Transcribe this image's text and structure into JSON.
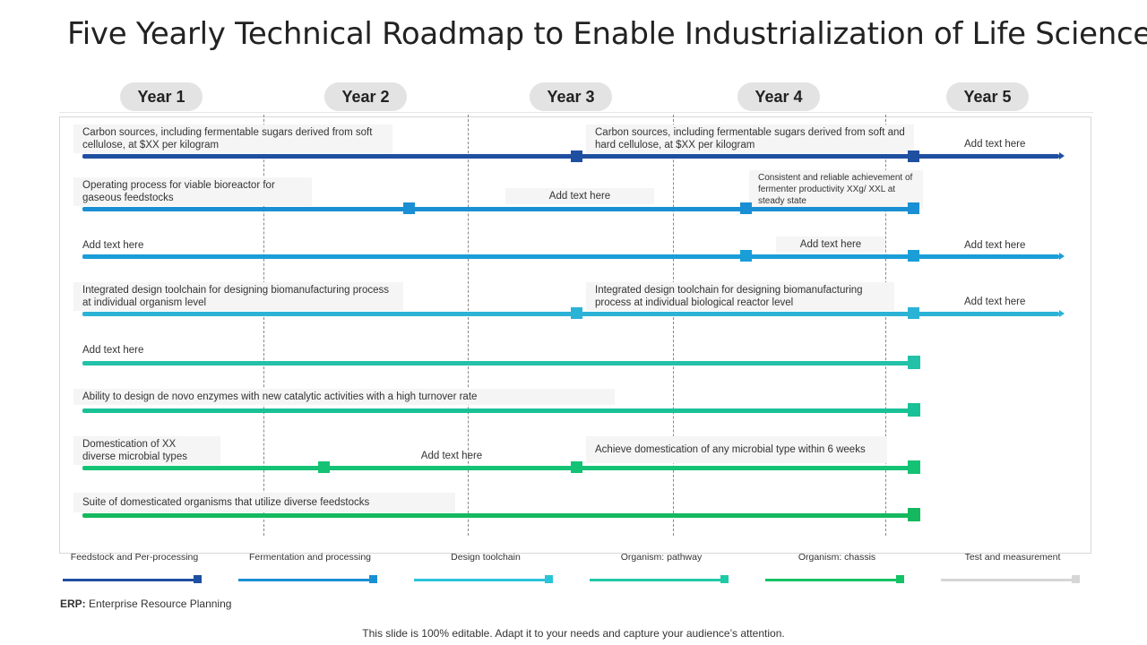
{
  "title": "Five Yearly Technical Roadmap to Enable Industrialization of Life Science",
  "years": [
    "Year 1",
    "Year 2",
    "Year 3",
    "Year 4",
    "Year 5"
  ],
  "colors": {
    "lane1": "#1f4fa0",
    "lane2": "#1a8fd3",
    "lane3": "#2bb3d6",
    "lane4": "#23c1b8",
    "lane5": "#14c58e",
    "lane6": "#1ab86a",
    "legend_grey": "#d6d6d6"
  },
  "lanes": [
    {
      "labels": [
        "Carbon sources, including fermentable sugars derived from soft cellulose, at $XX  per kilogram",
        "Carbon sources, including fermentable sugars derived from soft and hard cellulose, at $XX  per kilogram",
        "Add text here"
      ]
    },
    {
      "labels": [
        "Operating process for viable bioreactor for gaseous feedstocks",
        "Add text here",
        "Consistent and reliable achievement of fermenter productivity XXg/ XXL at steady state"
      ]
    },
    {
      "labels": [
        "Add text here",
        "Add text here",
        "Add text here"
      ]
    },
    {
      "labels": [
        "Integrated design toolchain for designing biomanufacturing process at individual organism level",
        "Integrated design toolchain for designing biomanufacturing process at individual biological reactor level",
        "Add text here"
      ]
    },
    {
      "labels": [
        "Add text here"
      ]
    },
    {
      "labels": [
        "Ability to design de novo enzymes with new catalytic activities with a high turnover rate"
      ]
    },
    {
      "labels": [
        "Domestication of XX diverse microbial types",
        "Add text here",
        "Achieve domestication of any microbial type within 6 weeks"
      ]
    },
    {
      "labels": [
        "Suite of domesticated organisms that utilize diverse feedstocks"
      ]
    }
  ],
  "legend": [
    {
      "label": "Feedstock and Per-processing"
    },
    {
      "label": "Fermentation and processing"
    },
    {
      "label": "Design toolchain"
    },
    {
      "label": "Organism: pathway"
    },
    {
      "label": "Organism: chassis"
    },
    {
      "label": "Test and measurement"
    }
  ],
  "erp": {
    "abbr": "ERP:",
    "text": "Enterprise Resource Planning"
  },
  "footer": "This slide is 100% editable. Adapt it to your needs and capture your audience’s attention."
}
